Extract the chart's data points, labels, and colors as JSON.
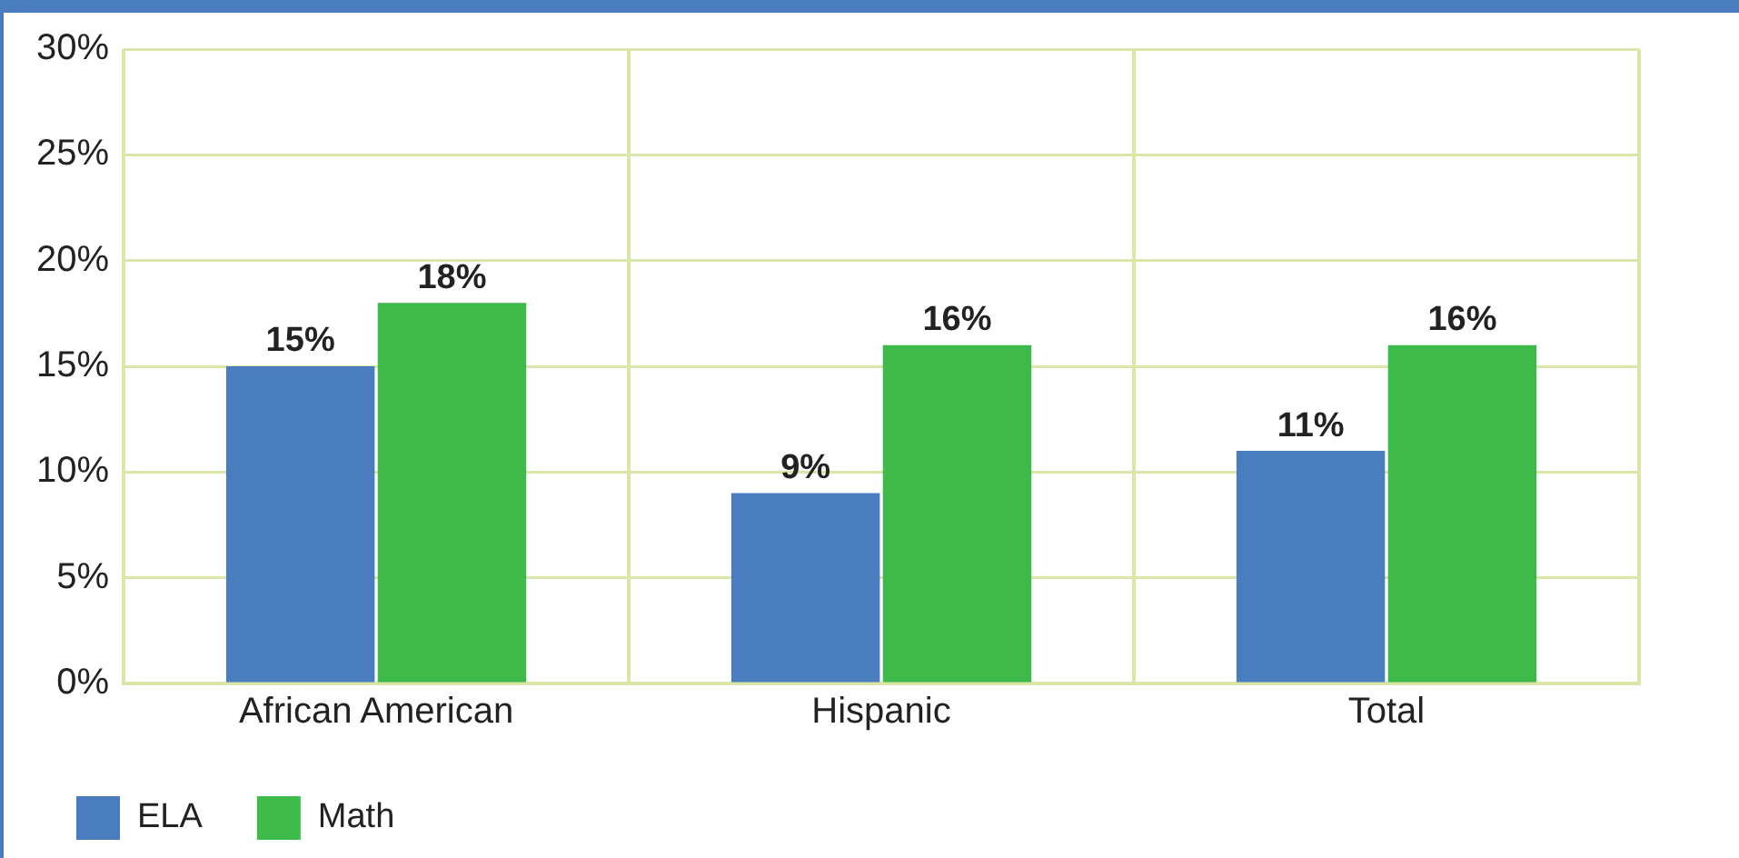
{
  "chart_data": {
    "type": "bar",
    "categories": [
      "African American",
      "Hispanic",
      "Total"
    ],
    "series": [
      {
        "name": "ELA",
        "color": "#4a7cc0",
        "values": [
          15,
          9,
          11
        ]
      },
      {
        "name": "Math",
        "color": "#3dba4a",
        "values": [
          18,
          16,
          16
        ]
      }
    ],
    "ylim": [
      0,
      30
    ],
    "yticks": [
      {
        "value": 0,
        "label": "0%"
      },
      {
        "value": 5,
        "label": "5%"
      },
      {
        "value": 10,
        "label": "10%"
      },
      {
        "value": 15,
        "label": "15%"
      },
      {
        "value": 20,
        "label": "20%"
      },
      {
        "value": 25,
        "label": "25%"
      },
      {
        "value": 30,
        "label": "30%"
      }
    ],
    "value_labels": [
      [
        "15%",
        "9%",
        "11%"
      ],
      [
        "18%",
        "16%",
        "16%"
      ]
    ],
    "grid": true,
    "legend": "bottom left"
  }
}
